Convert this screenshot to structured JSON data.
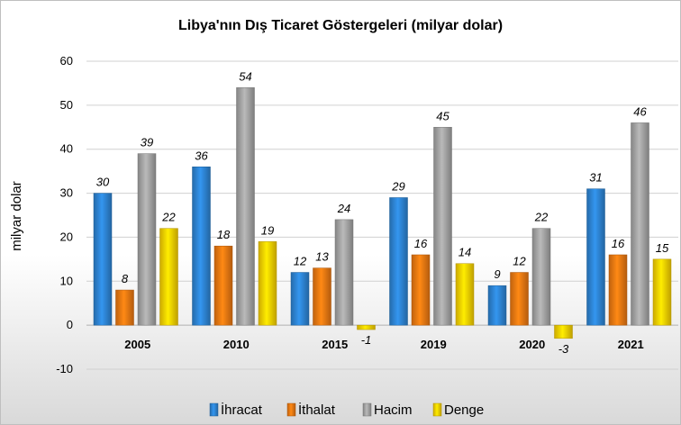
{
  "chart_data": {
    "type": "bar",
    "title": "Libya'nın Dış Ticaret Göstergeleri  (milyar dolar)",
    "xlabel": "",
    "ylabel": "milyar dolar",
    "ylim": [
      -10,
      60
    ],
    "yticks": [
      -10,
      0,
      10,
      20,
      30,
      40,
      50,
      60
    ],
    "grid": true,
    "legend": "bottom",
    "categories": [
      "2005",
      "2010",
      "2015",
      "2019",
      "2020",
      "2021"
    ],
    "series": [
      {
        "name": "İhracat",
        "color": "#2e86d6",
        "values": [
          30,
          36,
          12,
          29,
          9,
          31
        ]
      },
      {
        "name": "İthalat",
        "color": "#f07a12",
        "values": [
          8,
          18,
          13,
          16,
          12,
          16
        ]
      },
      {
        "name": "Hacim",
        "color": "#a6a6a6",
        "values": [
          39,
          54,
          24,
          45,
          22,
          46
        ]
      },
      {
        "name": "Denge",
        "color": "#ffd400",
        "values": [
          22,
          19,
          -1,
          14,
          -3,
          15
        ]
      }
    ]
  }
}
